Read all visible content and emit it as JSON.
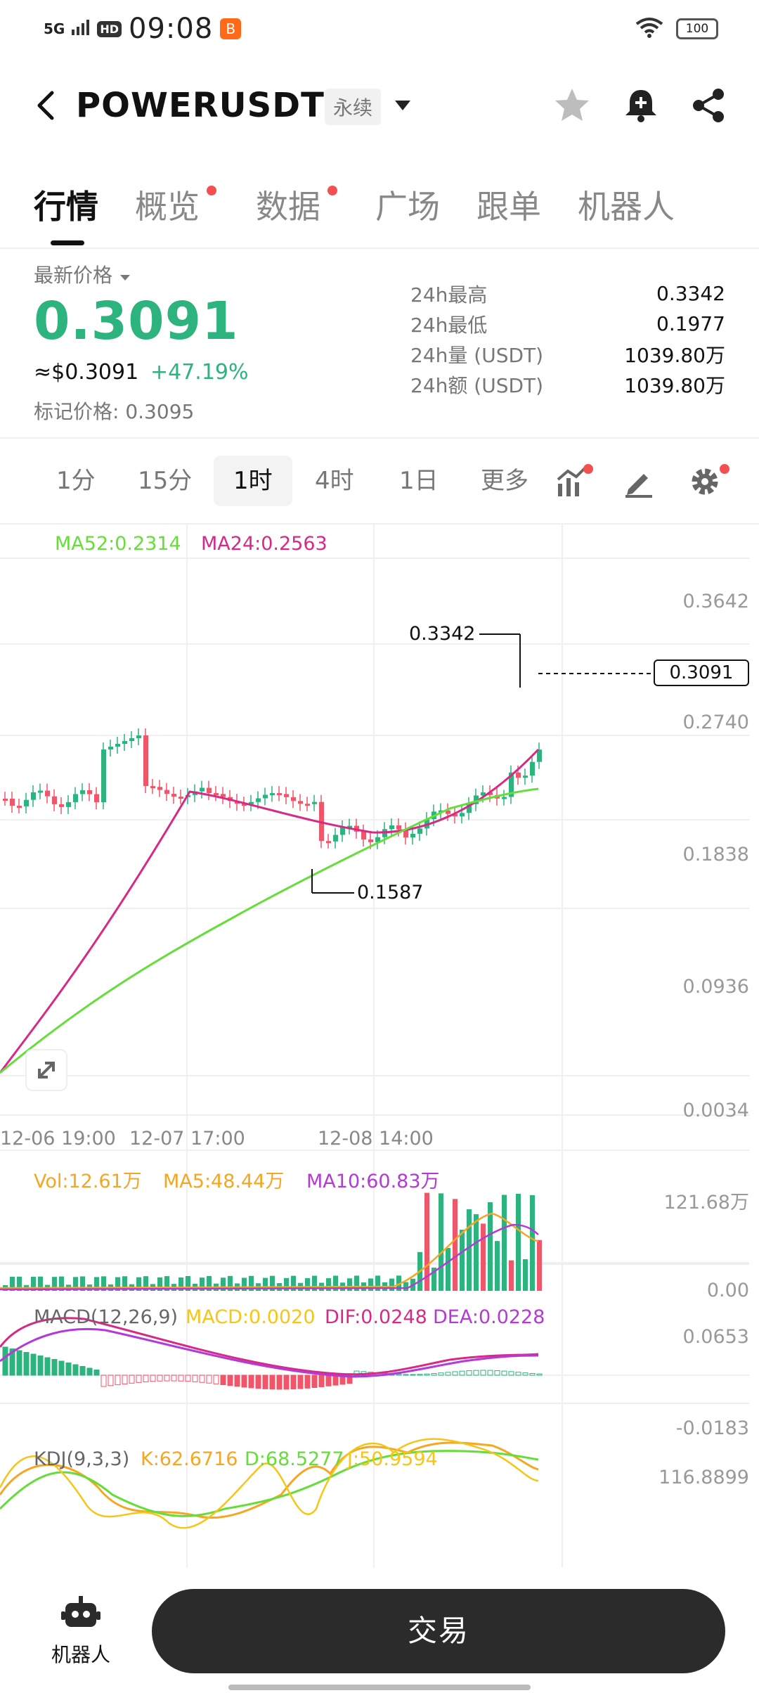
{
  "status_bar": {
    "signal": "5G",
    "hd": "HD",
    "time": "09:08",
    "app_badge": "B",
    "battery": "100"
  },
  "header": {
    "pair": "POWERUSDT",
    "contract_tag": "永续",
    "icons": [
      "back-arrow-icon",
      "chevron-down-icon",
      "star-icon",
      "bell-plus-icon",
      "share-icon"
    ]
  },
  "tabs": [
    {
      "label": "行情",
      "active": true,
      "dot": false
    },
    {
      "label": "概览",
      "active": false,
      "dot": true
    },
    {
      "label": "数据",
      "active": false,
      "dot": true
    },
    {
      "label": "广场",
      "active": false,
      "dot": false
    },
    {
      "label": "跟单",
      "active": false,
      "dot": false
    },
    {
      "label": "机器人",
      "active": false,
      "dot": false
    }
  ],
  "price": {
    "latest_label": "最新价格",
    "last": "0.3091",
    "usd": "≈$0.3091",
    "change_pct": "+47.19%",
    "mark_label": "标记价格:",
    "mark": "0.3095"
  },
  "stats": [
    {
      "key": "24h最高",
      "value": "0.3342"
    },
    {
      "key": "24h最低",
      "value": "0.1977"
    },
    {
      "key": "24h量 (USDT)",
      "value": "1039.80万"
    },
    {
      "key": "24h额 (USDT)",
      "value": "1039.80万"
    }
  ],
  "intervals": {
    "items": [
      "1分",
      "15分",
      "1时",
      "4时",
      "1日",
      "更多"
    ],
    "active": "1时",
    "tools": [
      "indicator-icon",
      "draw-icon",
      "settings-icon"
    ]
  },
  "chart": {
    "ma52_label": "MA52:0.2314",
    "ma24_label": "MA24:0.2563",
    "y_ticks": [
      "0.3642",
      "0.2740",
      "0.1838",
      "0.0936",
      "0.0034"
    ],
    "x_ticks": [
      "12-06 19:00",
      "12-07 17:00",
      "12-08 14:00"
    ],
    "high_label": "0.3342",
    "low_label": "0.1587",
    "current_label": "0.3091",
    "vol_label": "Vol:12.61万",
    "vol_ma5_label": "MA5:48.44万",
    "vol_ma10_label": "MA10:60.83万",
    "vol_max": "121.68万",
    "vol_min": "0.00",
    "macd_title": "MACD(12,26,9)",
    "macd_label": "MACD:0.0020",
    "dif_label": "DIF:0.0248",
    "dea_label": "DEA:0.0228",
    "macd_max": "0.0653",
    "macd_min": "-0.0183",
    "kdj_title": "KDJ(9,3,3)",
    "k_label": "K:62.6716",
    "d_label": "D:68.5277",
    "j_label": "J:50.9594",
    "kdj_max": "116.8899",
    "colors": {
      "up": "#2db37d",
      "down": "#f0566a",
      "ma52": "#66dd3a",
      "ma24": "#d62a86",
      "vol_ma5": "#f5a623",
      "vol_ma10": "#b43ad8",
      "macd_dif": "#d62a86",
      "macd_dea": "#b43ad8",
      "kdj_k": "#f5a623",
      "kdj_d": "#66dd3a",
      "kdj_j": "#f5c518"
    }
  },
  "bottom": {
    "robot_label": "机器人",
    "trade_label": "交易"
  }
}
